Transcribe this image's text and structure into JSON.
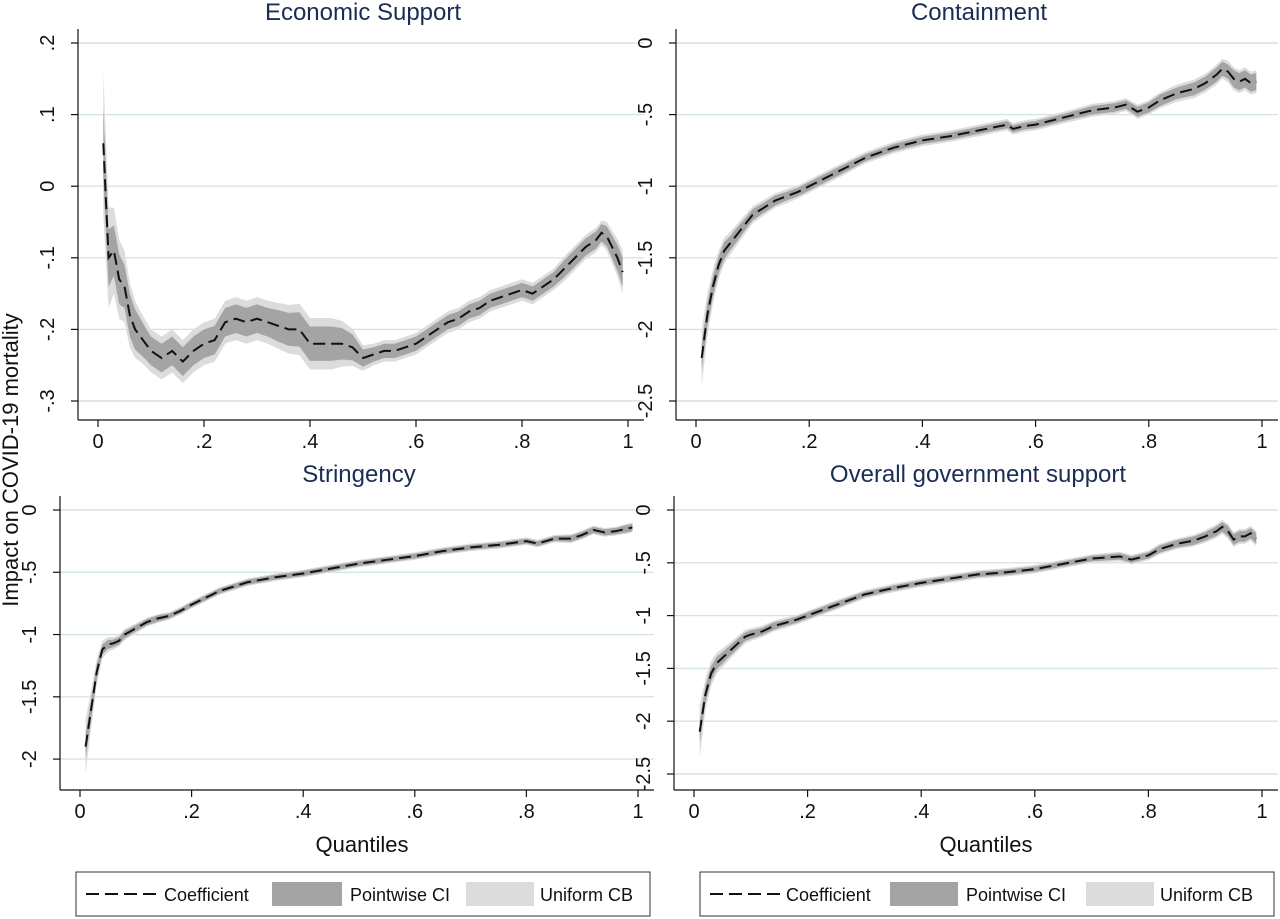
{
  "chart_data": {
    "ylabel": "Impact on COVID-19 mortality",
    "xlabel": "Quantiles",
    "legend": {
      "placement": "bottom",
      "entries": [
        "Coefficient",
        "Pointwise CI",
        "Uniform CB"
      ]
    },
    "colors": {
      "coefficient": "#111111",
      "pointwise_ci": "#a4a4a4",
      "uniform_cb": "#dcdcdc",
      "grid": "#d4e4e4",
      "title": "#1a2d55"
    },
    "panels": [
      {
        "type": "line",
        "title": "Economic Support",
        "xlim": [
          0,
          1
        ],
        "ylim": [
          -0.3,
          0.2
        ],
        "xticks": [
          0,
          0.2,
          0.4,
          0.6,
          0.8,
          1
        ],
        "xtick_labels": [
          "0",
          ".2",
          ".4",
          ".6",
          ".8",
          "1"
        ],
        "yticks": [
          0.2,
          0.1,
          0,
          -0.1,
          -0.2,
          -0.3
        ],
        "ytick_labels": [
          ".2",
          ".1",
          "0",
          "-.1",
          "-.2",
          "-.3"
        ],
        "grid": true,
        "x": [
          0.01,
          0.02,
          0.03,
          0.04,
          0.05,
          0.06,
          0.07,
          0.08,
          0.09,
          0.1,
          0.12,
          0.14,
          0.16,
          0.18,
          0.2,
          0.22,
          0.24,
          0.26,
          0.28,
          0.3,
          0.32,
          0.34,
          0.36,
          0.38,
          0.4,
          0.42,
          0.44,
          0.46,
          0.48,
          0.5,
          0.52,
          0.54,
          0.56,
          0.58,
          0.6,
          0.62,
          0.64,
          0.66,
          0.68,
          0.7,
          0.72,
          0.74,
          0.76,
          0.78,
          0.8,
          0.82,
          0.84,
          0.86,
          0.88,
          0.9,
          0.92,
          0.94,
          0.95,
          0.96,
          0.97,
          0.98,
          0.99
        ],
        "coef": [
          0.06,
          -0.1,
          -0.09,
          -0.13,
          -0.14,
          -0.18,
          -0.2,
          -0.21,
          -0.22,
          -0.23,
          -0.24,
          -0.23,
          -0.245,
          -0.23,
          -0.22,
          -0.215,
          -0.19,
          -0.185,
          -0.19,
          -0.185,
          -0.19,
          -0.195,
          -0.2,
          -0.2,
          -0.22,
          -0.22,
          -0.22,
          -0.22,
          -0.225,
          -0.24,
          -0.235,
          -0.23,
          -0.23,
          -0.225,
          -0.22,
          -0.21,
          -0.2,
          -0.19,
          -0.185,
          -0.175,
          -0.17,
          -0.16,
          -0.155,
          -0.15,
          -0.145,
          -0.15,
          -0.14,
          -0.13,
          -0.115,
          -0.1,
          -0.085,
          -0.075,
          -0.065,
          -0.07,
          -0.085,
          -0.1,
          -0.12
        ],
        "pw": [
          0.05,
          0.04,
          0.035,
          0.035,
          0.03,
          0.03,
          0.028,
          0.025,
          0.022,
          0.02,
          0.02,
          0.02,
          0.02,
          0.02,
          0.02,
          0.02,
          0.02,
          0.02,
          0.02,
          0.02,
          0.02,
          0.022,
          0.023,
          0.024,
          0.024,
          0.024,
          0.024,
          0.022,
          0.018,
          0.012,
          0.01,
          0.01,
          0.01,
          0.01,
          0.01,
          0.01,
          0.01,
          0.01,
          0.01,
          0.01,
          0.01,
          0.01,
          0.01,
          0.01,
          0.01,
          0.01,
          0.01,
          0.01,
          0.012,
          0.012,
          0.012,
          0.012,
          0.012,
          0.014,
          0.016,
          0.018,
          0.02
        ],
        "ub": [
          0.1,
          0.07,
          0.06,
          0.055,
          0.05,
          0.045,
          0.04,
          0.035,
          0.032,
          0.03,
          0.03,
          0.03,
          0.03,
          0.03,
          0.03,
          0.03,
          0.03,
          0.03,
          0.03,
          0.03,
          0.03,
          0.032,
          0.034,
          0.036,
          0.036,
          0.036,
          0.036,
          0.032,
          0.026,
          0.018,
          0.015,
          0.015,
          0.015,
          0.015,
          0.015,
          0.015,
          0.015,
          0.015,
          0.015,
          0.015,
          0.015,
          0.015,
          0.015,
          0.015,
          0.015,
          0.015,
          0.015,
          0.015,
          0.017,
          0.017,
          0.017,
          0.017,
          0.017,
          0.02,
          0.023,
          0.026,
          0.03
        ]
      },
      {
        "type": "line",
        "title": "Containment",
        "xlim": [
          0,
          1
        ],
        "ylim": [
          -2.5,
          0
        ],
        "xticks": [
          0,
          0.2,
          0.4,
          0.6,
          0.8,
          1
        ],
        "xtick_labels": [
          "0",
          ".2",
          ".4",
          ".6",
          ".8",
          "1"
        ],
        "yticks": [
          0,
          -0.5,
          -1,
          -1.5,
          -2,
          -2.5
        ],
        "ytick_labels": [
          "0",
          "-.5",
          "-1",
          "-1.5",
          "-2",
          "-2.5"
        ],
        "grid": true,
        "x": [
          0.01,
          0.02,
          0.03,
          0.04,
          0.05,
          0.06,
          0.07,
          0.08,
          0.09,
          0.1,
          0.12,
          0.14,
          0.16,
          0.18,
          0.2,
          0.25,
          0.3,
          0.35,
          0.4,
          0.45,
          0.5,
          0.55,
          0.56,
          0.58,
          0.6,
          0.65,
          0.7,
          0.74,
          0.76,
          0.78,
          0.8,
          0.82,
          0.85,
          0.88,
          0.9,
          0.92,
          0.93,
          0.94,
          0.95,
          0.96,
          0.97,
          0.98,
          0.99
        ],
        "coef": [
          -2.2,
          -1.9,
          -1.7,
          -1.55,
          -1.45,
          -1.4,
          -1.35,
          -1.3,
          -1.25,
          -1.2,
          -1.15,
          -1.1,
          -1.07,
          -1.04,
          -1.0,
          -0.9,
          -0.8,
          -0.73,
          -0.68,
          -0.65,
          -0.61,
          -0.57,
          -0.6,
          -0.58,
          -0.57,
          -0.52,
          -0.47,
          -0.45,
          -0.43,
          -0.48,
          -0.45,
          -0.4,
          -0.35,
          -0.32,
          -0.28,
          -0.22,
          -0.18,
          -0.2,
          -0.25,
          -0.27,
          -0.25,
          -0.28,
          -0.27
        ],
        "pw": [
          0.09,
          0.08,
          0.07,
          0.06,
          0.06,
          0.05,
          0.05,
          0.045,
          0.04,
          0.04,
          0.035,
          0.035,
          0.03,
          0.03,
          0.03,
          0.03,
          0.025,
          0.025,
          0.025,
          0.025,
          0.025,
          0.025,
          0.025,
          0.025,
          0.025,
          0.025,
          0.03,
          0.03,
          0.03,
          0.035,
          0.035,
          0.04,
          0.04,
          0.045,
          0.045,
          0.05,
          0.05,
          0.05,
          0.06,
          0.06,
          0.06,
          0.06,
          0.06
        ],
        "ub": [
          0.2,
          0.15,
          0.12,
          0.1,
          0.09,
          0.08,
          0.075,
          0.07,
          0.065,
          0.06,
          0.055,
          0.05,
          0.05,
          0.045,
          0.045,
          0.045,
          0.04,
          0.04,
          0.04,
          0.04,
          0.04,
          0.04,
          0.04,
          0.04,
          0.04,
          0.04,
          0.045,
          0.045,
          0.045,
          0.05,
          0.05,
          0.055,
          0.06,
          0.065,
          0.065,
          0.07,
          0.07,
          0.075,
          0.08,
          0.08,
          0.08,
          0.08,
          0.08
        ]
      },
      {
        "type": "line",
        "title": "Stringency",
        "xlim": [
          0,
          1
        ],
        "ylim": [
          -2.2,
          0
        ],
        "xticks": [
          0,
          0.2,
          0.4,
          0.6,
          0.8,
          1
        ],
        "xtick_labels": [
          "0",
          ".2",
          ".4",
          ".6",
          ".8",
          "1"
        ],
        "yticks": [
          0,
          -0.5,
          -1,
          -1.5,
          -2
        ],
        "ytick_labels": [
          "0",
          "-.5",
          "-1",
          "-1.5",
          "-2"
        ],
        "grid": true,
        "x": [
          0.01,
          0.02,
          0.03,
          0.04,
          0.05,
          0.06,
          0.07,
          0.08,
          0.1,
          0.12,
          0.14,
          0.16,
          0.18,
          0.2,
          0.25,
          0.3,
          0.35,
          0.4,
          0.45,
          0.5,
          0.55,
          0.6,
          0.65,
          0.7,
          0.75,
          0.8,
          0.82,
          0.85,
          0.88,
          0.9,
          0.92,
          0.94,
          0.96,
          0.98,
          0.99
        ],
        "coef": [
          -1.9,
          -1.6,
          -1.3,
          -1.12,
          -1.08,
          -1.07,
          -1.05,
          -1.0,
          -0.95,
          -0.9,
          -0.87,
          -0.85,
          -0.81,
          -0.76,
          -0.65,
          -0.58,
          -0.54,
          -0.51,
          -0.47,
          -0.43,
          -0.4,
          -0.37,
          -0.33,
          -0.3,
          -0.28,
          -0.25,
          -0.27,
          -0.23,
          -0.23,
          -0.2,
          -0.16,
          -0.18,
          -0.17,
          -0.15,
          -0.14
        ],
        "pw": [
          0.1,
          0.08,
          0.06,
          0.04,
          0.035,
          0.03,
          0.03,
          0.03,
          0.025,
          0.025,
          0.025,
          0.02,
          0.02,
          0.02,
          0.02,
          0.02,
          0.02,
          0.02,
          0.02,
          0.02,
          0.02,
          0.02,
          0.02,
          0.02,
          0.02,
          0.02,
          0.02,
          0.02,
          0.025,
          0.025,
          0.025,
          0.025,
          0.025,
          0.03,
          0.03
        ],
        "ub": [
          0.22,
          0.15,
          0.1,
          0.07,
          0.06,
          0.05,
          0.045,
          0.045,
          0.04,
          0.035,
          0.035,
          0.03,
          0.03,
          0.03,
          0.03,
          0.03,
          0.03,
          0.03,
          0.03,
          0.03,
          0.03,
          0.03,
          0.03,
          0.03,
          0.03,
          0.03,
          0.03,
          0.03,
          0.035,
          0.035,
          0.035,
          0.035,
          0.035,
          0.04,
          0.04
        ]
      },
      {
        "type": "line",
        "title": "Overall government support",
        "xlim": [
          0,
          1
        ],
        "ylim": [
          -2.5,
          0
        ],
        "xticks": [
          0,
          0.2,
          0.4,
          0.6,
          0.8,
          1
        ],
        "xtick_labels": [
          "0",
          ".2",
          ".4",
          ".6",
          ".8",
          "1"
        ],
        "yticks": [
          0,
          -0.5,
          -1,
          -1.5,
          -2,
          -2.5
        ],
        "ytick_labels": [
          "0",
          "-.5",
          "-1",
          "-1.5",
          "-2",
          "-2.5"
        ],
        "grid": true,
        "x": [
          0.01,
          0.02,
          0.03,
          0.04,
          0.05,
          0.06,
          0.07,
          0.08,
          0.09,
          0.1,
          0.12,
          0.14,
          0.16,
          0.18,
          0.2,
          0.25,
          0.3,
          0.35,
          0.4,
          0.45,
          0.5,
          0.55,
          0.6,
          0.65,
          0.7,
          0.75,
          0.77,
          0.8,
          0.82,
          0.85,
          0.88,
          0.9,
          0.92,
          0.93,
          0.94,
          0.95,
          0.96,
          0.97,
          0.98,
          0.99
        ],
        "coef": [
          -2.1,
          -1.75,
          -1.55,
          -1.45,
          -1.4,
          -1.35,
          -1.3,
          -1.25,
          -1.2,
          -1.18,
          -1.15,
          -1.1,
          -1.07,
          -1.04,
          -1.0,
          -0.9,
          -0.8,
          -0.74,
          -0.69,
          -0.65,
          -0.61,
          -0.59,
          -0.56,
          -0.51,
          -0.46,
          -0.44,
          -0.47,
          -0.43,
          -0.37,
          -0.32,
          -0.29,
          -0.25,
          -0.2,
          -0.16,
          -0.2,
          -0.28,
          -0.25,
          -0.25,
          -0.22,
          -0.27
        ],
        "pw": [
          0.1,
          0.08,
          0.07,
          0.06,
          0.055,
          0.05,
          0.05,
          0.045,
          0.04,
          0.04,
          0.035,
          0.035,
          0.03,
          0.03,
          0.03,
          0.03,
          0.025,
          0.025,
          0.025,
          0.025,
          0.025,
          0.025,
          0.025,
          0.025,
          0.025,
          0.03,
          0.03,
          0.03,
          0.035,
          0.035,
          0.04,
          0.04,
          0.045,
          0.045,
          0.05,
          0.05,
          0.05,
          0.05,
          0.05,
          0.05
        ],
        "ub": [
          0.25,
          0.15,
          0.12,
          0.1,
          0.09,
          0.08,
          0.075,
          0.07,
          0.065,
          0.06,
          0.055,
          0.05,
          0.05,
          0.045,
          0.045,
          0.045,
          0.04,
          0.04,
          0.04,
          0.04,
          0.04,
          0.04,
          0.04,
          0.04,
          0.04,
          0.045,
          0.045,
          0.045,
          0.05,
          0.05,
          0.055,
          0.06,
          0.065,
          0.065,
          0.07,
          0.07,
          0.07,
          0.07,
          0.07,
          0.07
        ]
      }
    ]
  }
}
